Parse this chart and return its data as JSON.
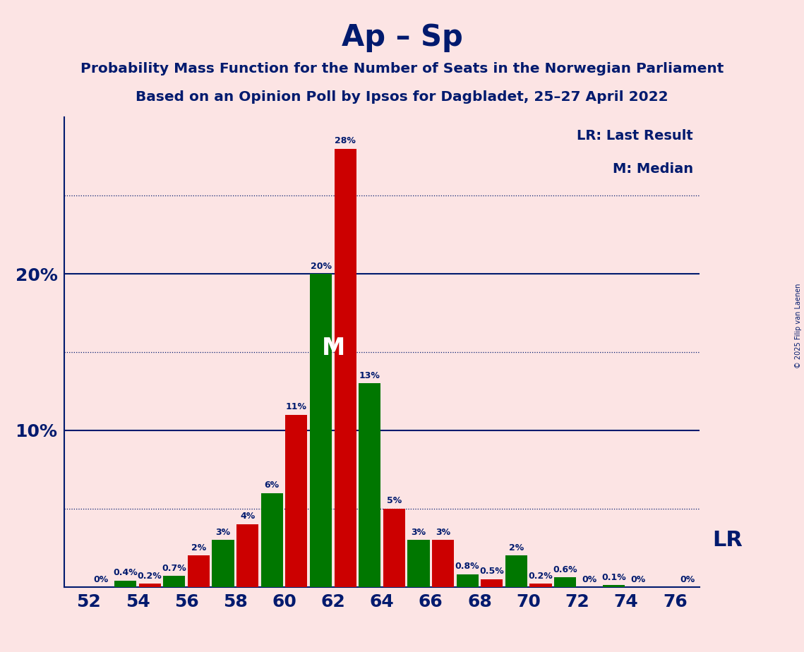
{
  "title": "Ap – Sp",
  "subtitle1": "Probability Mass Function for the Number of Seats in the Norwegian Parliament",
  "subtitle2": "Based on an Opinion Poll by Ipsos for Dagbladet, 25–27 April 2022",
  "copyright": "© 2025 Filip van Laenen",
  "lr_label": "LR: Last Result",
  "median_label": "M: Median",
  "lr_annotation": "LR",
  "median_annotation": "M",
  "background_color": "#fce4e4",
  "bar_color_red": "#cc0000",
  "bar_color_green": "#007700",
  "title_color": "#001a6e",
  "text_color": "#001a6e",
  "pairs": [
    {
      "seat": 52,
      "green": 0.0,
      "red": 0.0,
      "green_lbl": "",
      "red_lbl": "0%"
    },
    {
      "seat": 54,
      "green": 0.4,
      "red": 0.2,
      "green_lbl": "0.4%",
      "red_lbl": "0.2%"
    },
    {
      "seat": 56,
      "green": 0.7,
      "red": 2.0,
      "green_lbl": "0.7%",
      "red_lbl": "2%"
    },
    {
      "seat": 58,
      "green": 3.0,
      "red": 4.0,
      "green_lbl": "3%",
      "red_lbl": "4%"
    },
    {
      "seat": 60,
      "green": 6.0,
      "red": 11.0,
      "green_lbl": "6%",
      "red_lbl": "11%"
    },
    {
      "seat": 62,
      "green": 20.0,
      "red": 28.0,
      "green_lbl": "20%",
      "red_lbl": "28%"
    },
    {
      "seat": 64,
      "green": 13.0,
      "red": 5.0,
      "green_lbl": "13%",
      "red_lbl": "5%"
    },
    {
      "seat": 66,
      "green": 3.0,
      "red": 3.0,
      "green_lbl": "3%",
      "red_lbl": "3%"
    },
    {
      "seat": 68,
      "green": 0.8,
      "red": 0.5,
      "green_lbl": "0.8%",
      "red_lbl": "0.5%"
    },
    {
      "seat": 70,
      "green": 2.0,
      "red": 0.2,
      "green_lbl": "2%",
      "red_lbl": "0.2%"
    },
    {
      "seat": 72,
      "green": 0.6,
      "red": 0.0,
      "green_lbl": "0.6%",
      "red_lbl": "0%"
    },
    {
      "seat": 74,
      "green": 0.1,
      "red": 0.0,
      "green_lbl": "0.1%",
      "red_lbl": "0%"
    },
    {
      "seat": 76,
      "green": 0.0,
      "red": 0.0,
      "green_lbl": "",
      "red_lbl": "0%"
    }
  ],
  "xtick_seats": [
    52,
    54,
    56,
    58,
    60,
    62,
    64,
    66,
    68,
    70,
    72,
    74,
    76
  ],
  "ylim": [
    0,
    30
  ],
  "solid_gridlines": [
    10.0,
    20.0
  ],
  "dotted_gridlines": [
    5.0,
    15.0,
    25.0
  ],
  "lr_y": 3.0,
  "median_red_seat": 62,
  "bar_width": 0.9
}
